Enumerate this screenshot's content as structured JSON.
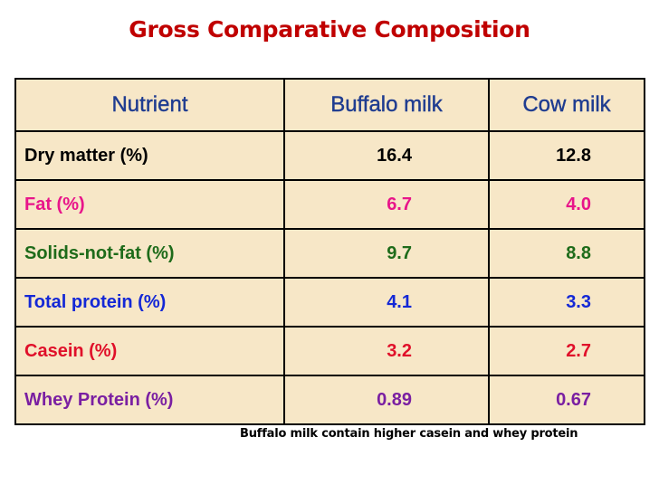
{
  "title": "Gross Comparative Composition",
  "table": {
    "headers": [
      "Nutrient",
      "Buffalo milk",
      "Cow milk"
    ],
    "rows": [
      {
        "nutrient": "Dry matter (%)",
        "buffalo": "16.4",
        "cow": "12.8",
        "color": "#000000"
      },
      {
        "nutrient": "Fat (%)",
        "buffalo": "6.7",
        "cow": "4.0",
        "color": "#e8158a"
      },
      {
        "nutrient": "Solids-not-fat (%)",
        "buffalo": "9.7",
        "cow": "8.8",
        "color": "#1e6b1a"
      },
      {
        "nutrient": "Total protein (%)",
        "buffalo": "4.1",
        "cow": "3.3",
        "color": "#1428d6"
      },
      {
        "nutrient": "Casein (%)",
        "buffalo": "3.2",
        "cow": "2.7",
        "color": "#e0102a"
      },
      {
        "nutrient": "Whey Protein (%)",
        "buffalo": "0.89",
        "cow": "0.67",
        "color": "#7a1fa2"
      }
    ]
  },
  "footnote": "Buffalo milk contain higher casein and whey protein"
}
